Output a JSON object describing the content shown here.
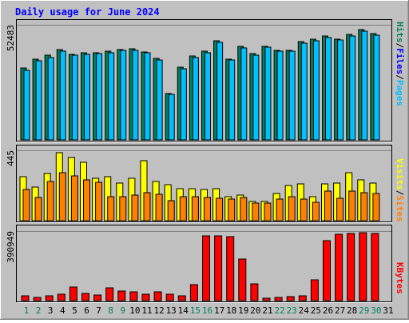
{
  "title": "Daily usage for June 2024",
  "colors": {
    "background": "#c0c0c0",
    "title": "#0000ff",
    "hits": "#00805c",
    "files": "#0000ff",
    "pages": "#00c0ff",
    "visits": "#ffff00",
    "sites": "#ff8000",
    "kbytes": "#ff0000",
    "weekend": "#00805c"
  },
  "right_labels": {
    "hits": "Hits",
    "files": "Files",
    "pages": "Pages",
    "visits": "Visits",
    "sites": "Sites",
    "kbytes": "KBytes",
    "separator": "/"
  },
  "chart_data": {
    "type": "bar",
    "title": "Daily usage for June 2024",
    "categories": [
      "1",
      "2",
      "3",
      "4",
      "5",
      "6",
      "7",
      "8",
      "9",
      "10",
      "11",
      "12",
      "13",
      "14",
      "15",
      "16",
      "17",
      "18",
      "19",
      "20",
      "21",
      "22",
      "23",
      "24",
      "25",
      "26",
      "27",
      "28",
      "29",
      "30",
      "31"
    ],
    "weekend_days": [
      "1",
      "2",
      "8",
      "9",
      "15",
      "16",
      "22",
      "23",
      "29",
      "30"
    ],
    "panels": [
      {
        "id": "top",
        "scale_label": "52483",
        "max": 52483,
        "series": [
          {
            "name": "Hits",
            "values": [
              32700,
              36800,
              38500,
              41200,
              39100,
              39700,
              39800,
              40400,
              41300,
              41500,
              40100,
              37100,
              21100,
              33100,
              38300,
              40300,
              45100,
              36900,
              42500,
              39200,
              42800,
              40900,
              40900,
              44800,
              45900,
              47200,
              46100,
              48100,
              50200,
              48300,
              0
            ]
          },
          {
            "name": "Files",
            "values": [
              31800,
              36000,
              37700,
              40600,
              38500,
              39100,
              39200,
              39800,
              40800,
              40900,
              39600,
              36500,
              20600,
              32600,
              37700,
              39700,
              44400,
              36300,
              41900,
              38700,
              42300,
              40400,
              40300,
              44200,
              45300,
              46500,
              45600,
              47500,
              49700,
              47700,
              0
            ]
          }
        ]
      },
      {
        "id": "middle",
        "scale_label": "445",
        "max": 445,
        "series": [
          {
            "name": "Visits",
            "values": [
              278,
              210,
              300,
              430,
              400,
              370,
              270,
              280,
              240,
              270,
              380,
              250,
              230,
              200,
              200,
              195,
              200,
              150,
              160,
              120,
              120,
              170,
              220,
              235,
              150,
              235,
              240,
              305,
              260,
              240,
              0
            ]
          },
          {
            "name": "Sites",
            "values": [
              195,
              145,
              250,
              305,
              285,
              260,
              245,
              150,
              150,
              160,
              175,
              165,
              125,
              150,
              150,
              145,
              140,
              135,
              145,
              110,
              110,
              135,
              150,
              135,
              115,
              185,
              140,
              185,
              175,
              170,
              0
            ]
          }
        ]
      },
      {
        "id": "bottom",
        "scale_label": "390949",
        "max": 390949,
        "series": [
          {
            "name": "KBytes",
            "values": [
              25000,
              18000,
              27000,
              38000,
              78000,
              42000,
              30000,
              70000,
              55000,
              48000,
              38000,
              48000,
              35000,
              25000,
              92000,
              365000,
              365000,
              360000,
              235000,
              93000,
              15000,
              20000,
              22000,
              25000,
              115000,
              335000,
              372000,
              378000,
              380000,
              378000,
              0
            ]
          }
        ]
      }
    ]
  }
}
